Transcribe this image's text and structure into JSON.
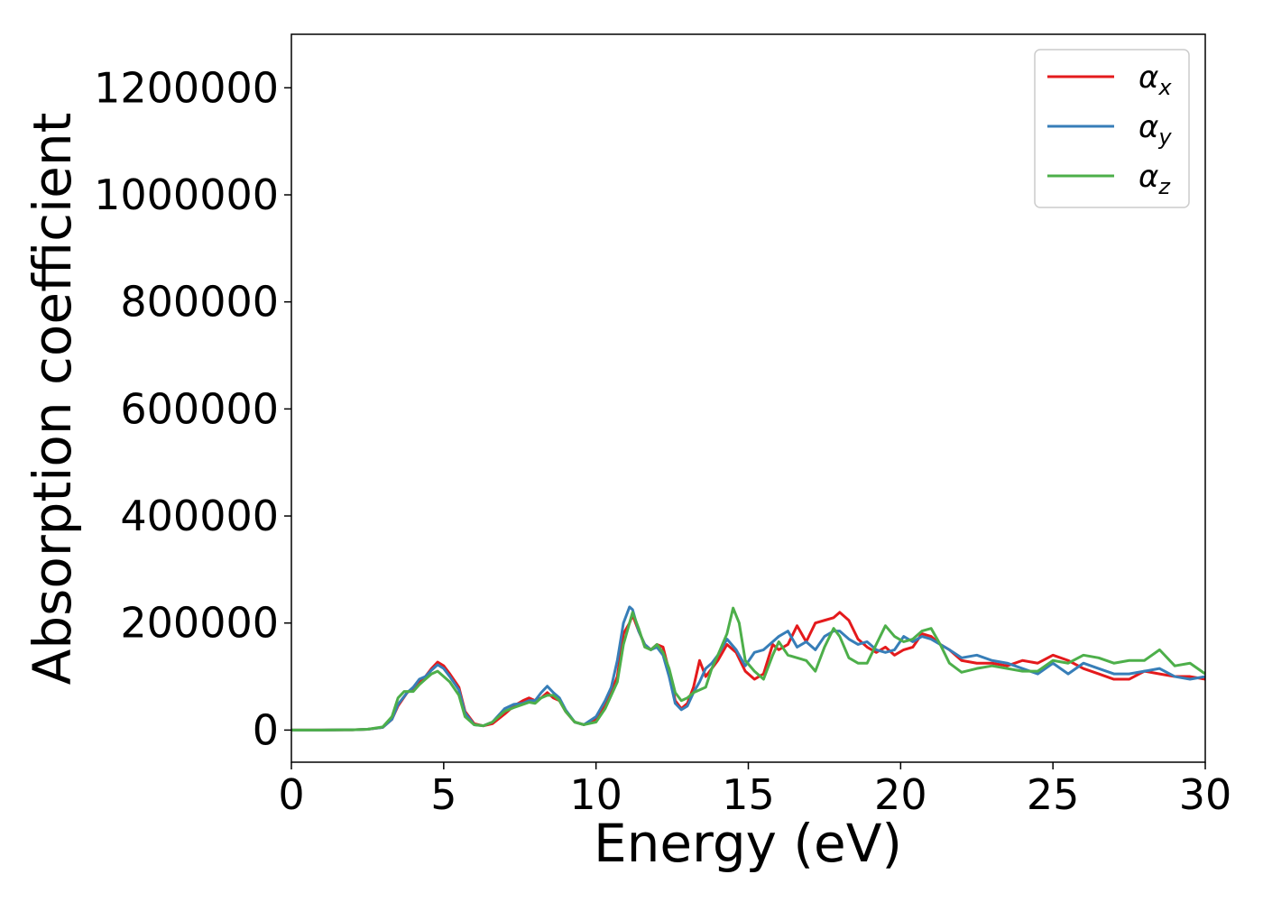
{
  "chart_data": {
    "type": "line",
    "xlabel": "Energy (eV)",
    "ylabel": "Absorption coefficient",
    "xlim": [
      0,
      30
    ],
    "ylim": [
      -60000,
      1300000
    ],
    "xticks": [
      0,
      5,
      10,
      15,
      20,
      25,
      30
    ],
    "yticks": [
      0,
      200000,
      400000,
      600000,
      800000,
      1000000,
      1200000
    ],
    "xtick_labels": [
      "0",
      "5",
      "10",
      "15",
      "20",
      "25",
      "30"
    ],
    "ytick_labels": [
      "0",
      "200000",
      "400000",
      "600000",
      "800000",
      "1000000",
      "1200000"
    ],
    "grid": false,
    "legend_position": "top-right",
    "series": [
      {
        "name": "αx",
        "symbol": "α",
        "subscript": "x",
        "color": "#e41a1c",
        "points": [
          [
            0,
            0
          ],
          [
            1,
            0
          ],
          [
            2,
            500
          ],
          [
            2.5,
            1500
          ],
          [
            3,
            5000
          ],
          [
            3.3,
            20000
          ],
          [
            3.5,
            45000
          ],
          [
            3.8,
            70000
          ],
          [
            4.0,
            78000
          ],
          [
            4.2,
            90000
          ],
          [
            4.4,
            100000
          ],
          [
            4.6,
            115000
          ],
          [
            4.8,
            127000
          ],
          [
            5.0,
            120000
          ],
          [
            5.2,
            105000
          ],
          [
            5.5,
            80000
          ],
          [
            5.7,
            35000
          ],
          [
            6.0,
            12000
          ],
          [
            6.3,
            8000
          ],
          [
            6.6,
            12000
          ],
          [
            7.0,
            30000
          ],
          [
            7.3,
            45000
          ],
          [
            7.6,
            55000
          ],
          [
            7.8,
            60000
          ],
          [
            8.0,
            55000
          ],
          [
            8.2,
            60000
          ],
          [
            8.4,
            70000
          ],
          [
            8.6,
            60000
          ],
          [
            8.8,
            55000
          ],
          [
            9.0,
            35000
          ],
          [
            9.3,
            15000
          ],
          [
            9.6,
            10000
          ],
          [
            10.0,
            20000
          ],
          [
            10.3,
            45000
          ],
          [
            10.5,
            70000
          ],
          [
            10.7,
            100000
          ],
          [
            10.9,
            180000
          ],
          [
            11.1,
            200000
          ],
          [
            11.2,
            215000
          ],
          [
            11.4,
            185000
          ],
          [
            11.6,
            160000
          ],
          [
            11.8,
            150000
          ],
          [
            12.0,
            160000
          ],
          [
            12.2,
            155000
          ],
          [
            12.4,
            110000
          ],
          [
            12.6,
            55000
          ],
          [
            12.8,
            40000
          ],
          [
            13.0,
            50000
          ],
          [
            13.2,
            80000
          ],
          [
            13.4,
            130000
          ],
          [
            13.6,
            100000
          ],
          [
            13.8,
            115000
          ],
          [
            14.0,
            130000
          ],
          [
            14.3,
            160000
          ],
          [
            14.6,
            145000
          ],
          [
            14.9,
            110000
          ],
          [
            15.2,
            95000
          ],
          [
            15.5,
            105000
          ],
          [
            15.8,
            160000
          ],
          [
            16.0,
            150000
          ],
          [
            16.3,
            160000
          ],
          [
            16.6,
            195000
          ],
          [
            16.9,
            165000
          ],
          [
            17.2,
            200000
          ],
          [
            17.5,
            205000
          ],
          [
            17.8,
            210000
          ],
          [
            18.0,
            220000
          ],
          [
            18.3,
            205000
          ],
          [
            18.6,
            170000
          ],
          [
            18.9,
            155000
          ],
          [
            19.2,
            145000
          ],
          [
            19.5,
            155000
          ],
          [
            19.8,
            140000
          ],
          [
            20.1,
            150000
          ],
          [
            20.4,
            155000
          ],
          [
            20.7,
            180000
          ],
          [
            21.0,
            175000
          ],
          [
            21.3,
            160000
          ],
          [
            21.6,
            150000
          ],
          [
            22.0,
            130000
          ],
          [
            22.5,
            125000
          ],
          [
            23.0,
            125000
          ],
          [
            23.5,
            120000
          ],
          [
            24.0,
            130000
          ],
          [
            24.5,
            125000
          ],
          [
            25.0,
            140000
          ],
          [
            25.5,
            130000
          ],
          [
            26.0,
            115000
          ],
          [
            26.5,
            105000
          ],
          [
            27.0,
            95000
          ],
          [
            27.5,
            95000
          ],
          [
            28.0,
            110000
          ],
          [
            28.5,
            105000
          ],
          [
            29.0,
            100000
          ],
          [
            29.5,
            100000
          ],
          [
            30.0,
            95000
          ]
        ]
      },
      {
        "name": "αy",
        "symbol": "α",
        "subscript": "y",
        "color": "#377eb8",
        "points": [
          [
            0,
            0
          ],
          [
            1,
            0
          ],
          [
            2,
            500
          ],
          [
            2.5,
            1500
          ],
          [
            3,
            5000
          ],
          [
            3.3,
            20000
          ],
          [
            3.5,
            48000
          ],
          [
            3.8,
            70000
          ],
          [
            4.0,
            80000
          ],
          [
            4.2,
            95000
          ],
          [
            4.4,
            100000
          ],
          [
            4.6,
            112000
          ],
          [
            4.8,
            122000
          ],
          [
            5.0,
            115000
          ],
          [
            5.2,
            100000
          ],
          [
            5.5,
            75000
          ],
          [
            5.7,
            32000
          ],
          [
            6.0,
            10000
          ],
          [
            6.3,
            8000
          ],
          [
            6.6,
            15000
          ],
          [
            7.0,
            40000
          ],
          [
            7.3,
            48000
          ],
          [
            7.6,
            50000
          ],
          [
            7.8,
            55000
          ],
          [
            8.0,
            55000
          ],
          [
            8.2,
            70000
          ],
          [
            8.4,
            82000
          ],
          [
            8.6,
            70000
          ],
          [
            8.8,
            60000
          ],
          [
            9.0,
            38000
          ],
          [
            9.3,
            15000
          ],
          [
            9.6,
            10000
          ],
          [
            10.0,
            25000
          ],
          [
            10.3,
            55000
          ],
          [
            10.5,
            80000
          ],
          [
            10.7,
            130000
          ],
          [
            10.9,
            200000
          ],
          [
            11.1,
            230000
          ],
          [
            11.2,
            225000
          ],
          [
            11.4,
            185000
          ],
          [
            11.6,
            160000
          ],
          [
            11.8,
            150000
          ],
          [
            12.0,
            155000
          ],
          [
            12.2,
            140000
          ],
          [
            12.4,
            100000
          ],
          [
            12.6,
            50000
          ],
          [
            12.8,
            38000
          ],
          [
            13.0,
            45000
          ],
          [
            13.2,
            70000
          ],
          [
            13.4,
            90000
          ],
          [
            13.6,
            115000
          ],
          [
            13.8,
            125000
          ],
          [
            14.0,
            140000
          ],
          [
            14.3,
            170000
          ],
          [
            14.6,
            150000
          ],
          [
            14.9,
            120000
          ],
          [
            15.2,
            145000
          ],
          [
            15.5,
            150000
          ],
          [
            15.8,
            165000
          ],
          [
            16.0,
            175000
          ],
          [
            16.3,
            185000
          ],
          [
            16.6,
            155000
          ],
          [
            16.9,
            165000
          ],
          [
            17.2,
            150000
          ],
          [
            17.5,
            175000
          ],
          [
            17.8,
            185000
          ],
          [
            18.0,
            185000
          ],
          [
            18.3,
            170000
          ],
          [
            18.6,
            160000
          ],
          [
            18.9,
            165000
          ],
          [
            19.2,
            150000
          ],
          [
            19.5,
            145000
          ],
          [
            19.8,
            150000
          ],
          [
            20.1,
            175000
          ],
          [
            20.4,
            165000
          ],
          [
            20.7,
            175000
          ],
          [
            21.0,
            170000
          ],
          [
            21.3,
            160000
          ],
          [
            21.6,
            150000
          ],
          [
            22.0,
            135000
          ],
          [
            22.5,
            140000
          ],
          [
            23.0,
            130000
          ],
          [
            23.5,
            125000
          ],
          [
            24.0,
            115000
          ],
          [
            24.5,
            105000
          ],
          [
            25.0,
            125000
          ],
          [
            25.5,
            105000
          ],
          [
            26.0,
            125000
          ],
          [
            26.5,
            115000
          ],
          [
            27.0,
            105000
          ],
          [
            27.5,
            105000
          ],
          [
            28.0,
            110000
          ],
          [
            28.5,
            115000
          ],
          [
            29.0,
            100000
          ],
          [
            29.5,
            95000
          ],
          [
            30.0,
            100000
          ]
        ]
      },
      {
        "name": "αz",
        "symbol": "α",
        "subscript": "z",
        "color": "#4daf4a",
        "points": [
          [
            0,
            0
          ],
          [
            1,
            0
          ],
          [
            2,
            500
          ],
          [
            2.5,
            1500
          ],
          [
            3,
            6000
          ],
          [
            3.3,
            25000
          ],
          [
            3.5,
            60000
          ],
          [
            3.7,
            72000
          ],
          [
            4.0,
            72000
          ],
          [
            4.2,
            85000
          ],
          [
            4.4,
            95000
          ],
          [
            4.6,
            105000
          ],
          [
            4.8,
            110000
          ],
          [
            5.0,
            100000
          ],
          [
            5.2,
            90000
          ],
          [
            5.5,
            65000
          ],
          [
            5.7,
            25000
          ],
          [
            6.0,
            10000
          ],
          [
            6.3,
            8000
          ],
          [
            6.6,
            15000
          ],
          [
            7.0,
            35000
          ],
          [
            7.3,
            42000
          ],
          [
            7.6,
            48000
          ],
          [
            7.8,
            52000
          ],
          [
            8.0,
            50000
          ],
          [
            8.2,
            60000
          ],
          [
            8.4,
            65000
          ],
          [
            8.6,
            65000
          ],
          [
            8.8,
            55000
          ],
          [
            9.0,
            35000
          ],
          [
            9.3,
            15000
          ],
          [
            9.6,
            10000
          ],
          [
            10.0,
            15000
          ],
          [
            10.3,
            40000
          ],
          [
            10.5,
            65000
          ],
          [
            10.7,
            90000
          ],
          [
            10.9,
            160000
          ],
          [
            11.1,
            200000
          ],
          [
            11.2,
            220000
          ],
          [
            11.4,
            190000
          ],
          [
            11.6,
            155000
          ],
          [
            11.8,
            150000
          ],
          [
            12.0,
            160000
          ],
          [
            12.2,
            145000
          ],
          [
            12.4,
            115000
          ],
          [
            12.6,
            70000
          ],
          [
            12.8,
            55000
          ],
          [
            13.0,
            60000
          ],
          [
            13.2,
            70000
          ],
          [
            13.4,
            75000
          ],
          [
            13.6,
            80000
          ],
          [
            13.8,
            115000
          ],
          [
            14.0,
            140000
          ],
          [
            14.3,
            180000
          ],
          [
            14.5,
            228000
          ],
          [
            14.7,
            200000
          ],
          [
            14.9,
            130000
          ],
          [
            15.2,
            110000
          ],
          [
            15.5,
            95000
          ],
          [
            15.8,
            140000
          ],
          [
            16.0,
            165000
          ],
          [
            16.3,
            140000
          ],
          [
            16.6,
            135000
          ],
          [
            16.9,
            130000
          ],
          [
            17.2,
            110000
          ],
          [
            17.5,
            155000
          ],
          [
            17.8,
            190000
          ],
          [
            18.0,
            175000
          ],
          [
            18.3,
            135000
          ],
          [
            18.6,
            125000
          ],
          [
            18.9,
            125000
          ],
          [
            19.2,
            160000
          ],
          [
            19.5,
            195000
          ],
          [
            19.8,
            175000
          ],
          [
            20.1,
            165000
          ],
          [
            20.4,
            170000
          ],
          [
            20.7,
            185000
          ],
          [
            21.0,
            190000
          ],
          [
            21.3,
            160000
          ],
          [
            21.6,
            125000
          ],
          [
            22.0,
            108000
          ],
          [
            22.5,
            115000
          ],
          [
            23.0,
            120000
          ],
          [
            23.5,
            115000
          ],
          [
            24.0,
            110000
          ],
          [
            24.5,
            110000
          ],
          [
            25.0,
            130000
          ],
          [
            25.5,
            125000
          ],
          [
            26.0,
            140000
          ],
          [
            26.5,
            135000
          ],
          [
            27.0,
            125000
          ],
          [
            27.5,
            130000
          ],
          [
            28.0,
            130000
          ],
          [
            28.5,
            150000
          ],
          [
            29.0,
            120000
          ],
          [
            29.5,
            125000
          ],
          [
            30.0,
            105000
          ]
        ]
      }
    ]
  }
}
